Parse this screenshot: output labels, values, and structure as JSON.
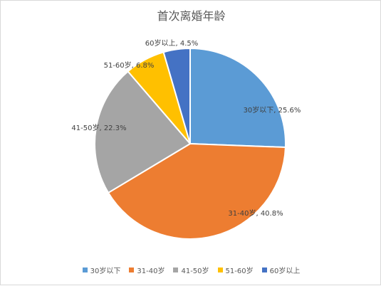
{
  "chart_data": {
    "type": "pie",
    "title": "首次离婚年龄",
    "slices": [
      {
        "label": "30岁以下",
        "value": 25.6,
        "data_label": "30岁以下, 25.6%",
        "color": "#5B9BD5"
      },
      {
        "label": "31-40岁",
        "value": 40.8,
        "data_label": "31-40岁, 40.8%",
        "color": "#ED7D31"
      },
      {
        "label": "41-50岁",
        "value": 22.3,
        "data_label": "41-50岁, 22.3%",
        "color": "#A5A5A5"
      },
      {
        "label": "51-60岁",
        "value": 6.8,
        "data_label": "51-60岁, 6.8%",
        "color": "#FFC000"
      },
      {
        "label": "60岁以上",
        "value": 4.5,
        "data_label": "60岁以上, 4.5%",
        "color": "#4472C4"
      }
    ],
    "start_angle_deg": 0,
    "direction": "clockwise",
    "legend_position": "bottom"
  }
}
